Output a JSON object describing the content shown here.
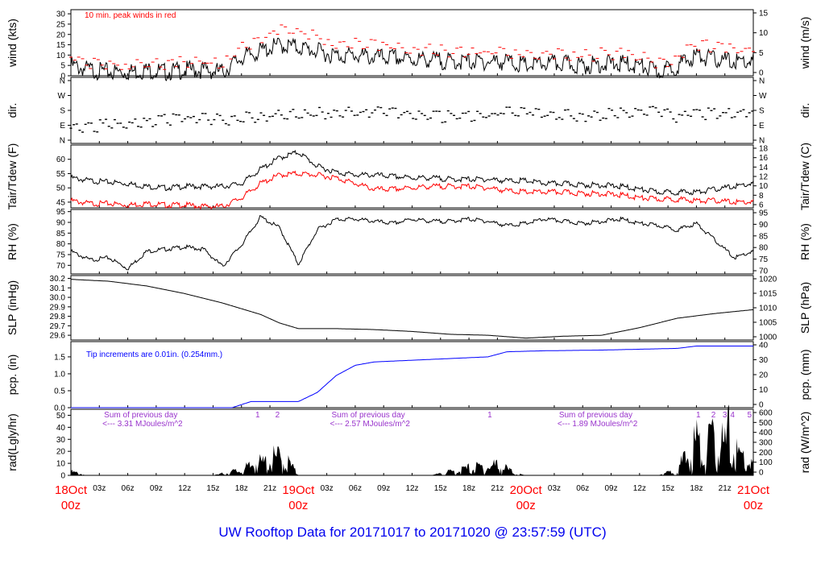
{
  "title": "UW Rooftop Data for 20171017  to  20171020 @ 23:57:59  (UTC)",
  "colors": {
    "accent_red": "#ff0000",
    "accent_blue": "#0000ff",
    "accent_purple": "#9933cc",
    "ink": "#000000"
  },
  "x_axis": {
    "unit": "hours since 18Oct 00z",
    "range": [
      0,
      72
    ],
    "hour_ticks": [
      {
        "h": 3,
        "label": "03z"
      },
      {
        "h": 6,
        "label": "06z"
      },
      {
        "h": 9,
        "label": "09z"
      },
      {
        "h": 12,
        "label": "12z"
      },
      {
        "h": 15,
        "label": "15z"
      },
      {
        "h": 18,
        "label": "18z"
      },
      {
        "h": 21,
        "label": "21z"
      },
      {
        "h": 27,
        "label": "03z"
      },
      {
        "h": 30,
        "label": "06z"
      },
      {
        "h": 33,
        "label": "09z"
      },
      {
        "h": 36,
        "label": "12z"
      },
      {
        "h": 39,
        "label": "15z"
      },
      {
        "h": 42,
        "label": "18z"
      },
      {
        "h": 45,
        "label": "21z"
      },
      {
        "h": 51,
        "label": "03z"
      },
      {
        "h": 54,
        "label": "06z"
      },
      {
        "h": 57,
        "label": "09z"
      },
      {
        "h": 60,
        "label": "12z"
      },
      {
        "h": 63,
        "label": "15z"
      },
      {
        "h": 66,
        "label": "18z"
      },
      {
        "h": 69,
        "label": "21z"
      }
    ],
    "day_ticks": [
      {
        "h": 0,
        "date": "18Oct",
        "time": "00z"
      },
      {
        "h": 24,
        "date": "19Oct",
        "time": "00z"
      },
      {
        "h": 48,
        "date": "20Oct",
        "time": "00z"
      },
      {
        "h": 72,
        "date": "21Oct",
        "time": "00z"
      }
    ]
  },
  "chart_data": [
    {
      "type": "line",
      "ylabel": "wind (kts)",
      "ylabel_right": "wind (m/s)",
      "ylim": [
        0,
        32
      ],
      "left_ticks": [
        "0",
        "5",
        "10",
        "15",
        "20",
        "25",
        "30"
      ],
      "right_ticks": [
        "0",
        "5",
        "10",
        "15"
      ],
      "annotation": "10 min. peak winds in red",
      "series": [
        {
          "name": "wind",
          "color": "#000000",
          "x": [
            0,
            2,
            4,
            6,
            8,
            10,
            12,
            14,
            16,
            18,
            20,
            22,
            24,
            26,
            28,
            30,
            32,
            34,
            36,
            38,
            40,
            42,
            44,
            46,
            48,
            50,
            52,
            54,
            56,
            58,
            60,
            62,
            64,
            66,
            68,
            70,
            72
          ],
          "y": [
            7,
            5,
            4,
            4,
            5,
            4,
            5,
            5,
            4,
            11,
            14,
            17,
            16,
            14,
            12,
            12,
            11,
            11,
            10,
            10,
            9,
            9,
            9,
            9,
            7,
            8,
            8,
            7,
            8,
            8,
            7,
            4,
            7,
            12,
            10,
            9,
            9
          ]
        },
        {
          "name": "10 min. peak winds",
          "color": "#ff0000",
          "style": "dash",
          "x": [
            0,
            2,
            4,
            6,
            8,
            10,
            12,
            14,
            16,
            18,
            20,
            22,
            24,
            26,
            28,
            30,
            32,
            34,
            36,
            38,
            40,
            42,
            44,
            46,
            48,
            50,
            52,
            54,
            56,
            58,
            60,
            62,
            64,
            66,
            68,
            70,
            72
          ],
          "y": [
            10,
            8,
            7,
            7,
            8,
            7,
            8,
            8,
            7,
            15,
            19,
            24,
            23,
            20,
            17,
            17,
            16,
            15,
            14,
            14,
            13,
            13,
            13,
            13,
            11,
            12,
            12,
            11,
            12,
            12,
            11,
            7,
            11,
            17,
            15,
            14,
            14
          ]
        }
      ]
    },
    {
      "type": "scatter",
      "ylabel": "dir.",
      "ylabel_right": "dir.",
      "left_ticks": [
        "N",
        "E",
        "S",
        "W",
        "N"
      ],
      "right_ticks": [
        "N",
        "E",
        "S",
        "W",
        "N"
      ],
      "series": [
        {
          "name": "dir",
          "color": "#000000",
          "x": [
            0,
            2,
            4,
            6,
            8,
            10,
            12,
            14,
            16,
            18,
            20,
            22,
            24,
            26,
            28,
            30,
            32,
            34,
            36,
            38,
            40,
            42,
            44,
            46,
            48,
            50,
            52,
            54,
            56,
            58,
            60,
            62,
            64,
            66,
            68,
            70,
            72
          ],
          "y": [
            90,
            100,
            110,
            120,
            130,
            140,
            150,
            150,
            140,
            150,
            160,
            170,
            175,
            180,
            185,
            185,
            185,
            180,
            170,
            160,
            160,
            160,
            170,
            190,
            200,
            170,
            170,
            165,
            175,
            180,
            185,
            190,
            160,
            175,
            180,
            180,
            185
          ]
        }
      ]
    },
    {
      "type": "line",
      "ylabel": "Tair/Tdew (F)",
      "ylabel_right": "Tair/Tdew (C)",
      "ylim": [
        43,
        65
      ],
      "left_ticks": [
        "45",
        "50",
        "55",
        "60"
      ],
      "right_ticks": [
        "6",
        "8",
        "10",
        "12",
        "14",
        "16",
        "18"
      ],
      "series": [
        {
          "name": "Tair",
          "color": "#000000",
          "x": [
            0,
            2,
            4,
            6,
            8,
            10,
            12,
            14,
            16,
            18,
            20,
            22,
            24,
            26,
            28,
            30,
            32,
            34,
            36,
            38,
            40,
            42,
            44,
            46,
            48,
            50,
            52,
            54,
            56,
            58,
            60,
            62,
            64,
            66,
            68,
            70,
            72
          ],
          "y": [
            54,
            53,
            52.5,
            52,
            51,
            50.5,
            51,
            51,
            51,
            52,
            57,
            61,
            63,
            58,
            56,
            55,
            55,
            54.5,
            54,
            54,
            53.5,
            53.5,
            53.5,
            53,
            53,
            52,
            52,
            51.5,
            51.5,
            51,
            50,
            49,
            49,
            49,
            50,
            51,
            52
          ]
        },
        {
          "name": "Tdew",
          "color": "#ff0000",
          "x": [
            0,
            2,
            4,
            6,
            8,
            10,
            12,
            14,
            16,
            18,
            20,
            22,
            24,
            26,
            28,
            30,
            32,
            34,
            36,
            38,
            40,
            42,
            44,
            46,
            48,
            50,
            52,
            54,
            56,
            58,
            60,
            62,
            64,
            66,
            68,
            70,
            72
          ],
          "y": [
            46,
            45,
            45,
            44.5,
            45,
            44.5,
            44.5,
            44,
            44,
            47,
            52,
            55,
            55.5,
            55,
            54,
            52,
            50,
            50,
            50.5,
            51,
            51,
            51,
            50.5,
            49.5,
            49,
            49,
            49,
            48.5,
            48.5,
            48,
            47,
            46.5,
            46.5,
            46,
            46,
            45.5,
            45.5
          ]
        }
      ]
    },
    {
      "type": "line",
      "ylabel": "RH (%)",
      "ylabel_right": "RH (%)",
      "ylim": [
        66,
        96
      ],
      "left_ticks": [
        "70",
        "75",
        "80",
        "85",
        "90",
        "95"
      ],
      "right_ticks": [
        "70",
        "75",
        "80",
        "85",
        "90",
        "95"
      ],
      "series": [
        {
          "name": "RH",
          "color": "#000000",
          "x": [
            0,
            2,
            4,
            6,
            8,
            10,
            12,
            14,
            16,
            18,
            20,
            22,
            24,
            26,
            28,
            30,
            32,
            34,
            36,
            38,
            40,
            42,
            44,
            46,
            48,
            50,
            52,
            54,
            56,
            58,
            60,
            62,
            64,
            66,
            68,
            70,
            72
          ],
          "y": [
            77,
            73,
            74,
            69,
            77,
            78,
            79,
            78,
            70,
            80,
            93,
            88,
            71,
            87,
            92,
            92,
            91,
            90,
            92,
            91,
            91,
            92,
            91,
            89,
            90,
            92,
            91,
            90,
            91,
            92,
            90,
            89,
            87,
            90,
            82,
            74,
            77
          ]
        }
      ]
    },
    {
      "type": "line",
      "ylabel": "SLP (inHg)",
      "ylabel_right": "SLP (hPa)",
      "ylim": [
        29.55,
        30.23
      ],
      "left_ticks": [
        "29.6",
        "29.7",
        "29.8",
        "29.9",
        "30.0",
        "30.1",
        "30.2"
      ],
      "right_ticks": [
        "1000",
        "1005",
        "1010",
        "1015",
        "1020"
      ],
      "series": [
        {
          "name": "SLP",
          "color": "#000000",
          "x": [
            0,
            4,
            8,
            12,
            16,
            20,
            22,
            24,
            28,
            32,
            36,
            40,
            44,
            48,
            52,
            56,
            60,
            64,
            68,
            72
          ],
          "y": [
            30.19,
            30.17,
            30.12,
            30.04,
            29.94,
            29.82,
            29.73,
            29.67,
            29.67,
            29.66,
            29.64,
            29.61,
            29.6,
            29.57,
            29.59,
            29.6,
            29.68,
            29.78,
            29.83,
            29.87
          ]
        }
      ]
    },
    {
      "type": "area",
      "ylabel": "pcp. (in)",
      "ylabel_right": "pcp. (mm)",
      "ylim": [
        0,
        1.95
      ],
      "left_ticks": [
        "0.0",
        "0.5",
        "1.0",
        "1.5"
      ],
      "right_ticks": [
        "0",
        "10",
        "20",
        "30",
        "40"
      ],
      "annotation": "Tip increments are 0.01in. (0.254mm.)",
      "series": [
        {
          "name": "pcp",
          "color": "#0000ff",
          "x": [
            0,
            17,
            19,
            22,
            24,
            26,
            28,
            30,
            32,
            36,
            40,
            44,
            46,
            50,
            56,
            64,
            66,
            72
          ],
          "y": [
            0,
            0,
            0.18,
            0.18,
            0.18,
            0.45,
            0.95,
            1.25,
            1.35,
            1.4,
            1.45,
            1.5,
            1.65,
            1.68,
            1.7,
            1.75,
            1.82,
            1.82
          ]
        }
      ]
    },
    {
      "type": "area",
      "ylabel": "rad(Lgly/hr)",
      "ylabel_right": "rad (W/m^2)",
      "ylim": [
        0,
        55
      ],
      "left_ticks": [
        "0",
        "10",
        "20",
        "30",
        "40",
        "50"
      ],
      "right_ticks": [
        "0",
        "100",
        "200",
        "300",
        "400",
        "500",
        "600"
      ],
      "annotations": [
        {
          "h": 3.5,
          "line1": "Sum of previous day",
          "line2": "<--- 3.31 MJoules/m^2"
        },
        {
          "h": 27.5,
          "line1": "Sum of previous day",
          "line2": "<--- 2.57 MJoules/m^2"
        },
        {
          "h": 51.5,
          "line1": "Sum of previous day",
          "line2": "<--- 1.89 MJoules/m^2"
        }
      ],
      "markers": [
        {
          "h": 19.7,
          "label": "1"
        },
        {
          "h": 21.8,
          "label": "2"
        },
        {
          "h": 44.2,
          "label": "1"
        },
        {
          "h": 66.2,
          "label": "1"
        },
        {
          "h": 67.8,
          "label": "2"
        },
        {
          "h": 69.0,
          "label": "3"
        },
        {
          "h": 69.8,
          "label": "4"
        },
        {
          "h": 71.6,
          "label": "5"
        }
      ],
      "series": [
        {
          "name": "rad",
          "color": "#000000",
          "x": [
            0,
            1,
            1.5,
            15,
            16,
            17,
            18,
            19,
            19.5,
            20,
            21,
            22,
            23,
            24,
            38,
            40,
            42,
            44,
            45,
            46,
            47,
            48,
            62,
            63,
            64,
            65,
            66,
            67,
            67.5,
            68,
            68.5,
            69,
            69.5,
            70,
            71,
            72
          ],
          "y": [
            4,
            2,
            0,
            0,
            2,
            4,
            6,
            10,
            26,
            12,
            18,
            20,
            14,
            0,
            0,
            4,
            8,
            10,
            12,
            7,
            2,
            0,
            0,
            3,
            8,
            20,
            40,
            18,
            45,
            25,
            50,
            30,
            52,
            26,
            20,
            12
          ]
        }
      ]
    }
  ]
}
